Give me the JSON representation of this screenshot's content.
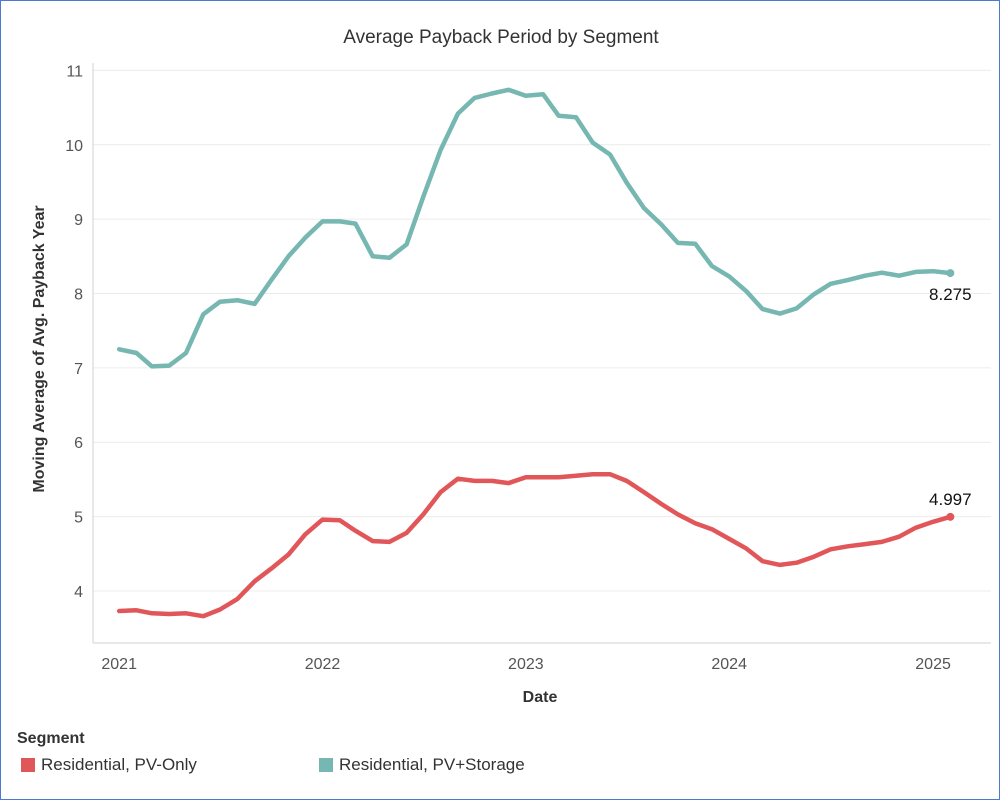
{
  "chart_data": {
    "type": "line",
    "title": "Average Payback Period by Segment",
    "xlabel": "Date",
    "ylabel": "Moving Average of Avg. Payback Year",
    "xlim": [
      "2020-11-15",
      "2025-04-15"
    ],
    "ylim": [
      3.3,
      11.1
    ],
    "x_ticks": [
      "2021",
      "2022",
      "2023",
      "2024",
      "2025"
    ],
    "y_ticks": [
      4,
      5,
      6,
      7,
      8,
      9,
      10,
      11
    ],
    "grid": true,
    "legend": {
      "title": "Segment",
      "position": "bottom-left"
    },
    "series": [
      {
        "name": "Residential, PV-Only",
        "color": "#e15759",
        "end_label": "4.997",
        "points": [
          [
            "2021-01-01",
            3.73
          ],
          [
            "2021-02-01",
            3.74
          ],
          [
            "2021-03-01",
            3.7
          ],
          [
            "2021-04-01",
            3.69
          ],
          [
            "2021-05-01",
            3.7
          ],
          [
            "2021-06-01",
            3.66
          ],
          [
            "2021-07-01",
            3.75
          ],
          [
            "2021-08-01",
            3.89
          ],
          [
            "2021-09-01",
            4.13
          ],
          [
            "2021-10-01",
            4.3
          ],
          [
            "2021-11-01",
            4.49
          ],
          [
            "2021-12-01",
            4.76
          ],
          [
            "2022-01-01",
            4.96
          ],
          [
            "2022-02-01",
            4.95
          ],
          [
            "2022-03-01",
            4.81
          ],
          [
            "2022-04-01",
            4.67
          ],
          [
            "2022-05-01",
            4.66
          ],
          [
            "2022-06-01",
            4.78
          ],
          [
            "2022-07-01",
            5.03
          ],
          [
            "2022-08-01",
            5.33
          ],
          [
            "2022-09-01",
            5.51
          ],
          [
            "2022-10-01",
            5.48
          ],
          [
            "2022-11-01",
            5.48
          ],
          [
            "2022-12-01",
            5.45
          ],
          [
            "2023-01-01",
            5.53
          ],
          [
            "2023-02-01",
            5.53
          ],
          [
            "2023-03-01",
            5.53
          ],
          [
            "2023-04-01",
            5.55
          ],
          [
            "2023-05-01",
            5.57
          ],
          [
            "2023-06-01",
            5.57
          ],
          [
            "2023-07-01",
            5.48
          ],
          [
            "2023-08-01",
            5.33
          ],
          [
            "2023-09-01",
            5.17
          ],
          [
            "2023-10-01",
            5.03
          ],
          [
            "2023-11-01",
            4.91
          ],
          [
            "2023-12-01",
            4.83
          ],
          [
            "2024-01-01",
            4.7
          ],
          [
            "2024-02-01",
            4.57
          ],
          [
            "2024-03-01",
            4.4
          ],
          [
            "2024-04-01",
            4.35
          ],
          [
            "2024-05-01",
            4.38
          ],
          [
            "2024-06-01",
            4.46
          ],
          [
            "2024-07-01",
            4.56
          ],
          [
            "2024-08-01",
            4.6
          ],
          [
            "2024-09-01",
            4.63
          ],
          [
            "2024-10-01",
            4.66
          ],
          [
            "2024-11-01",
            4.73
          ],
          [
            "2024-12-01",
            4.85
          ],
          [
            "2025-01-01",
            4.93
          ],
          [
            "2025-02-01",
            4.997
          ]
        ]
      },
      {
        "name": "Residential, PV+Storage",
        "color": "#76b7b2",
        "end_label": "8.275",
        "points": [
          [
            "2021-01-01",
            7.25
          ],
          [
            "2021-02-01",
            7.2
          ],
          [
            "2021-03-01",
            7.02
          ],
          [
            "2021-04-01",
            7.03
          ],
          [
            "2021-05-01",
            7.2
          ],
          [
            "2021-06-01",
            7.72
          ],
          [
            "2021-07-01",
            7.89
          ],
          [
            "2021-08-01",
            7.91
          ],
          [
            "2021-09-01",
            7.86
          ],
          [
            "2021-10-01",
            8.18
          ],
          [
            "2021-11-01",
            8.5
          ],
          [
            "2021-12-01",
            8.75
          ],
          [
            "2022-01-01",
            8.97
          ],
          [
            "2022-02-01",
            8.97
          ],
          [
            "2022-03-01",
            8.94
          ],
          [
            "2022-04-01",
            8.5
          ],
          [
            "2022-05-01",
            8.48
          ],
          [
            "2022-06-01",
            8.66
          ],
          [
            "2022-07-01",
            9.3
          ],
          [
            "2022-08-01",
            9.93
          ],
          [
            "2022-09-01",
            10.42
          ],
          [
            "2022-10-01",
            10.63
          ],
          [
            "2022-11-01",
            10.69
          ],
          [
            "2022-12-01",
            10.74
          ],
          [
            "2023-01-01",
            10.66
          ],
          [
            "2023-02-01",
            10.68
          ],
          [
            "2023-03-01",
            10.39
          ],
          [
            "2023-04-01",
            10.37
          ],
          [
            "2023-05-01",
            10.03
          ],
          [
            "2023-06-01",
            9.87
          ],
          [
            "2023-07-01",
            9.49
          ],
          [
            "2023-08-01",
            9.15
          ],
          [
            "2023-09-01",
            8.93
          ],
          [
            "2023-10-01",
            8.68
          ],
          [
            "2023-11-01",
            8.67
          ],
          [
            "2023-12-01",
            8.37
          ],
          [
            "2024-01-01",
            8.23
          ],
          [
            "2024-02-01",
            8.03
          ],
          [
            "2024-03-01",
            7.79
          ],
          [
            "2024-04-01",
            7.73
          ],
          [
            "2024-05-01",
            7.8
          ],
          [
            "2024-06-01",
            7.99
          ],
          [
            "2024-07-01",
            8.13
          ],
          [
            "2024-08-01",
            8.18
          ],
          [
            "2024-09-01",
            8.24
          ],
          [
            "2024-10-01",
            8.28
          ],
          [
            "2024-11-01",
            8.24
          ],
          [
            "2024-12-01",
            8.29
          ],
          [
            "2025-01-01",
            8.3
          ],
          [
            "2025-02-01",
            8.275
          ]
        ]
      }
    ]
  }
}
